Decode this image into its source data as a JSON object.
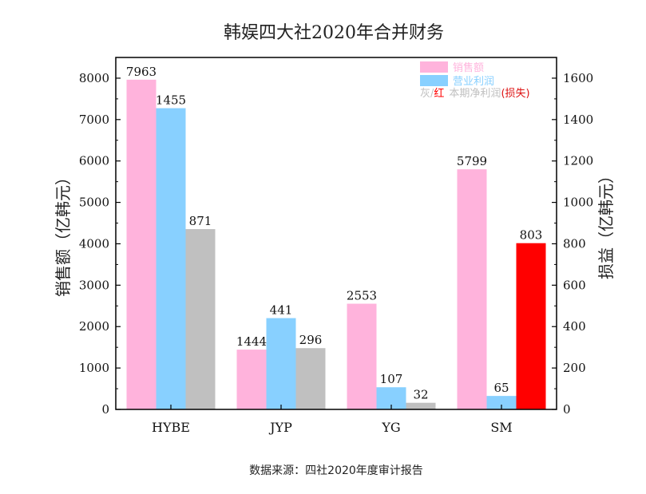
{
  "chart_data": {
    "type": "bar",
    "title": "韩娱四大社2020年合并财务",
    "categories": [
      "HYBE",
      "JYP",
      "YG",
      "SM"
    ],
    "left_axis": {
      "label": "销售额（亿韩元）",
      "ylim": [
        0,
        8500
      ],
      "ticks": [
        0,
        1000,
        2000,
        3000,
        4000,
        5000,
        6000,
        7000,
        8000
      ]
    },
    "right_axis": {
      "label": "损益（亿韩元）",
      "ylim": [
        0,
        1700
      ],
      "ticks": [
        0,
        200,
        400,
        600,
        800,
        1000,
        1200,
        1400,
        1600
      ]
    },
    "series": [
      {
        "name": "销售额",
        "axis": "left",
        "color": "#ffb3dc",
        "values": [
          7963,
          1444,
          2553,
          5799
        ],
        "labels": [
          "7963",
          "1444",
          "2553",
          "5799"
        ]
      },
      {
        "name": "营业利润",
        "axis": "right",
        "color": "#88d0ff",
        "values": [
          1455,
          441,
          107,
          65
        ],
        "labels": [
          "1455",
          "441",
          "107",
          "65"
        ]
      },
      {
        "name": "本期净利润",
        "axis": "right",
        "color": "#c0c0c0",
        "loss_color": "#ff0000",
        "values": [
          871,
          296,
          32,
          803
        ],
        "loss": [
          false,
          false,
          false,
          true
        ],
        "labels": [
          "871",
          "296",
          "32",
          "803"
        ]
      }
    ],
    "legend": {
      "position": "top-right",
      "entries": [
        "销售额",
        "营业利润"
      ],
      "note_gray": "灰",
      "note_slash": "/",
      "note_red": "红",
      "note_text": "本期净利润",
      "note_loss": "(损失)"
    },
    "grid": false
  },
  "source": "数据来源：四社2020年度审计报告",
  "colors": {
    "pink": "#ffb3dc",
    "blue": "#88d0ff",
    "gray": "#c0c0c0",
    "red": "#ff0000",
    "loss_text": "#dd1111"
  }
}
